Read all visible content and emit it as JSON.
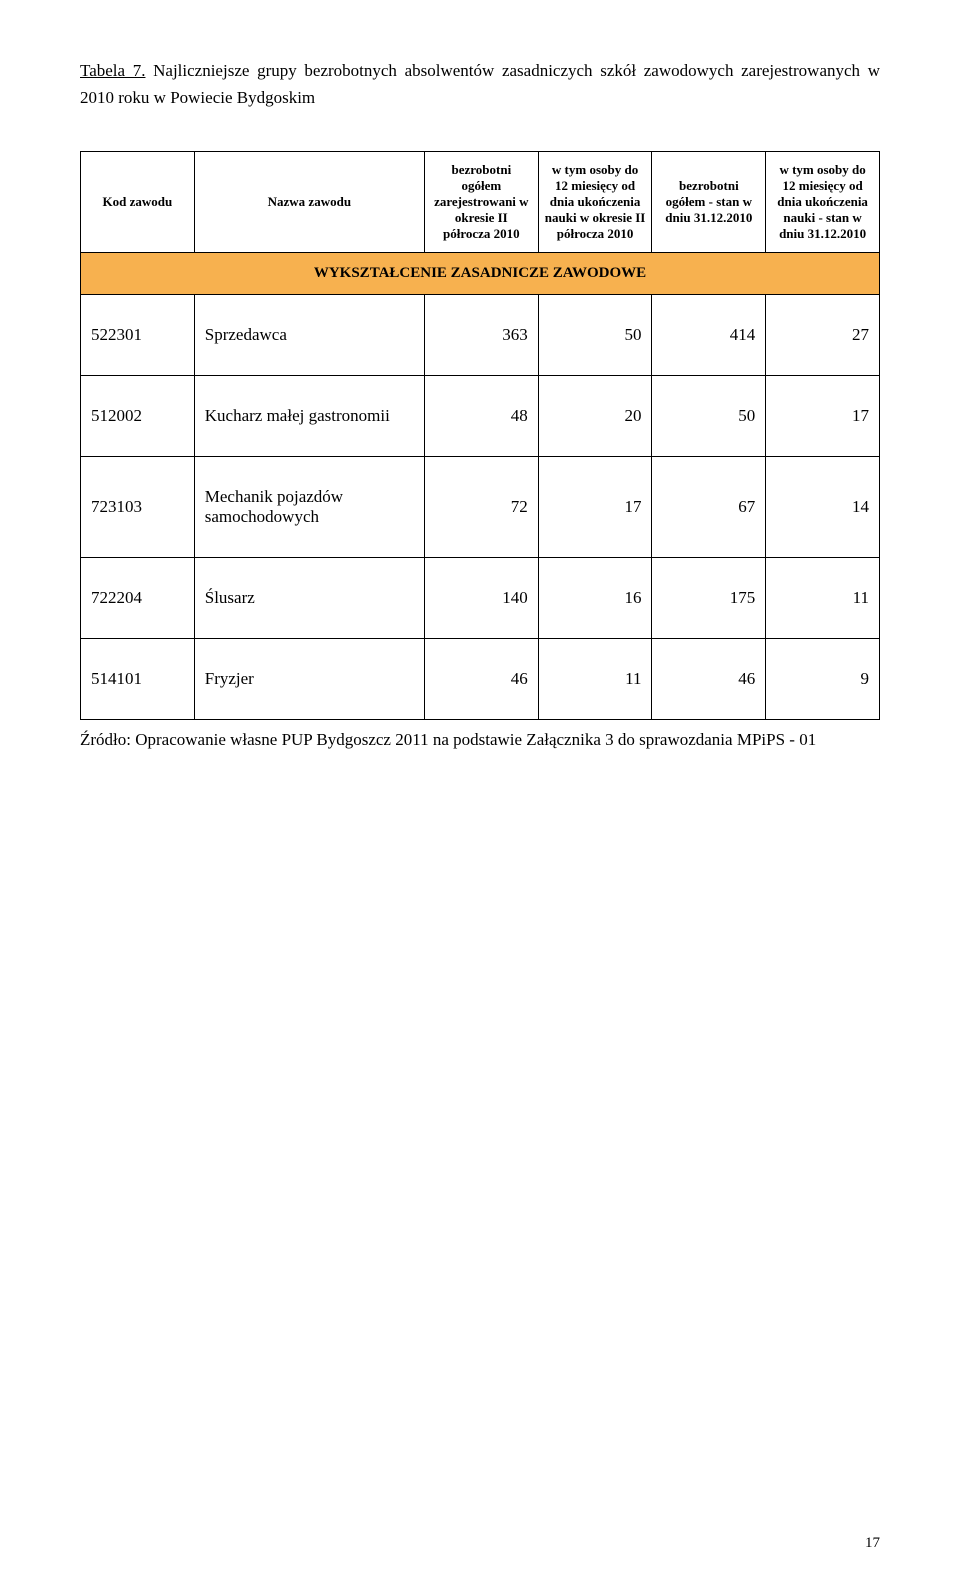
{
  "title_prefix": "Tabela 7.",
  "title_rest": " Najliczniejsze grupy bezrobotnych absolwentów zasadniczych szkół zawodowych zarejestrowanych w 2010 roku w Powiecie Bydgoskim",
  "headers": {
    "c0": "Kod zawodu",
    "c1": "Nazwa zawodu",
    "c2": "bezrobotni ogółem zarejestrowani w okresie II półrocza 2010",
    "c3": "w tym osoby do 12 miesięcy od dnia ukończenia nauki w okresie II półrocza 2010",
    "c4": "bezrobotni ogółem - stan w dniu 31.12.2010",
    "c5": "w tym osoby do 12 miesięcy od dnia ukończenia nauki - stan w dniu 31.12.2010"
  },
  "section_label": "WYKSZTAŁCENIE ZASADNICZE ZAWODOWE",
  "section_bg": "#f7b14f",
  "rows": [
    {
      "code": "522301",
      "name": "Sprzedawca",
      "v0": 363,
      "v1": 50,
      "v2": 414,
      "v3": 27
    },
    {
      "code": "512002",
      "name": "Kucharz małej gastronomii",
      "v0": 48,
      "v1": 20,
      "v2": 50,
      "v3": 17
    },
    {
      "code": "723103",
      "name": "Mechanik pojazdów samochodowych",
      "v0": 72,
      "v1": 17,
      "v2": 67,
      "v3": 14
    },
    {
      "code": "722204",
      "name": "Ślusarz",
      "v0": 140,
      "v1": 16,
      "v2": 175,
      "v3": 11
    },
    {
      "code": "514101",
      "name": "Fryzjer",
      "v0": 46,
      "v1": 11,
      "v2": 46,
      "v3": 9
    }
  ],
  "source": "Źródło: Opracowanie własne PUP Bydgoszcz 2011 na podstawie Załącznika 3 do sprawozdania MPiPS - 01",
  "page_number": "17"
}
